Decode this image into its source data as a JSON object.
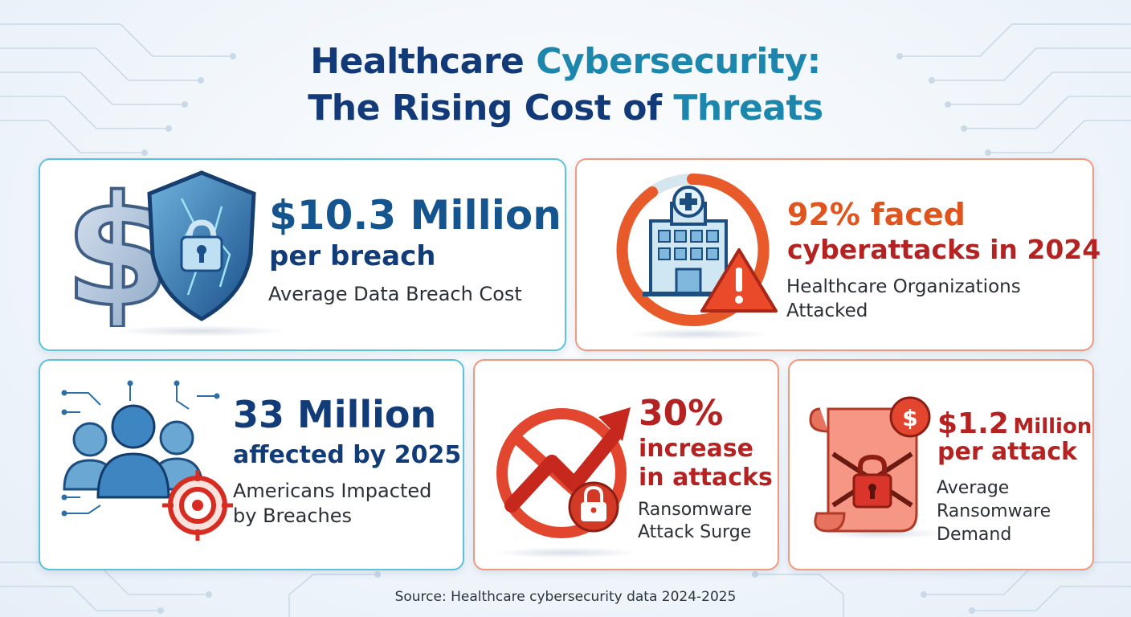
{
  "title": {
    "line1_dark": "Healthcare",
    "line1_light": "Cybersecurity:",
    "line2_dark": "The Rising Cost of",
    "line2_light": "Threats"
  },
  "cards": {
    "breach_cost": {
      "headline": "$10.3 Million",
      "subhead": "per breach",
      "label": "Average Data Breach Cost",
      "icon": "dollar-shield-lock-icon"
    },
    "attacked_orgs": {
      "headline": "92% faced",
      "subhead": "cyberattacks in 2024",
      "label_line1": "Healthcare Organizations",
      "label_line2": "Attacked",
      "icon": "hospital-warning-icon",
      "progress_percent": 92
    },
    "americans": {
      "headline": "33 Million",
      "subhead": "affected by 2025",
      "label_line1": "Americans Impacted",
      "label_line2": "by Breaches",
      "icon": "people-target-icon"
    },
    "ransomware_surge": {
      "headline": "30%",
      "subhead_line1": "increase",
      "subhead_line2": "in attacks",
      "label_line1": "Ransomware",
      "label_line2": "Attack Surge",
      "icon": "rising-arrow-lock-icon"
    },
    "ransom_demand": {
      "headline_value": "$1.2",
      "headline_unit": "Million",
      "subhead": "per attack",
      "label_line1": "Average",
      "label_line2": "Ransomware",
      "label_line3": "Demand",
      "icon": "ransom-note-lock-icon"
    }
  },
  "source": "Source: Healthcare cybersecurity data 2024-2025",
  "colors": {
    "navy": "#123c78",
    "teal": "#1d86ad",
    "orange": "#e0541e",
    "crimson": "#b52222",
    "card_blue_border": "#5cc2dc",
    "card_red_border": "#ef9a7e"
  }
}
